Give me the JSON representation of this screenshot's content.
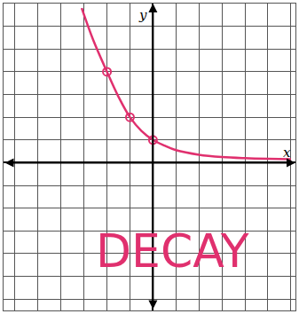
{
  "chart_data": {
    "type": "line",
    "x_label": "x",
    "y_label": "y",
    "annotations": [
      "DECAY"
    ],
    "xlim": [
      -6.5,
      6.2
    ],
    "ylim": [
      -6.5,
      7
    ],
    "xticks": [
      -6,
      -5,
      -4,
      -3,
      -2,
      -1,
      0,
      1,
      2,
      3,
      4,
      5,
      6
    ],
    "yticks": [
      -6,
      -5,
      -4,
      -3,
      -2,
      -1,
      0,
      1,
      2,
      3,
      4,
      5,
      6,
      7
    ],
    "grid": true,
    "tick_labels": false,
    "color": "#e0306e",
    "series": [
      {
        "type": "line",
        "line_style": "solid",
        "x": [
          -3.1,
          -2.6,
          -2,
          -1.5,
          -1,
          -0.5,
          0,
          0.5,
          1,
          2,
          3,
          4,
          5,
          6
        ],
        "values": [
          6.8,
          5.4,
          4,
          2.9,
          2,
          1.4,
          1,
          0.75,
          0.55,
          0.35,
          0.25,
          0.2,
          0.17,
          0.15
        ]
      },
      {
        "type": "scatter",
        "marker": "circle-open",
        "x": [
          -2,
          -1,
          0
        ],
        "values": [
          4,
          2,
          1
        ]
      }
    ]
  }
}
